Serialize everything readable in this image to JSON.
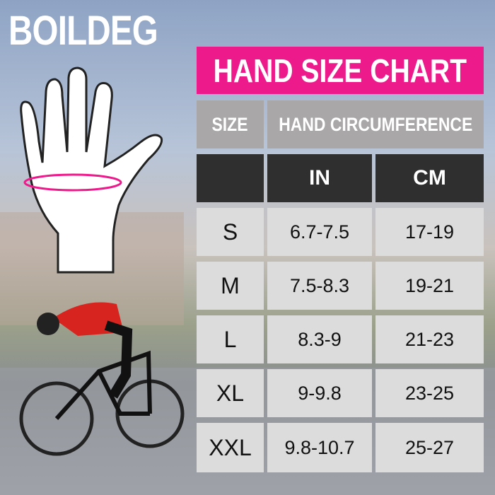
{
  "brand": "BOILDEG",
  "title": "HAND SIZE CHART",
  "table": {
    "header": [
      "SIZE",
      "HAND CIRCUMFERENCE"
    ],
    "subheader": [
      "IN",
      "CM"
    ],
    "rows": [
      [
        "S",
        "6.7-7.5",
        "17-19"
      ],
      [
        "M",
        "7.5-8.3",
        "19-21"
      ],
      [
        "L",
        "8.3-9",
        "21-23"
      ],
      [
        "XL",
        "9-9.8",
        "23-25"
      ],
      [
        "XXL",
        "9.8-10.7",
        "25-27"
      ]
    ]
  }
}
